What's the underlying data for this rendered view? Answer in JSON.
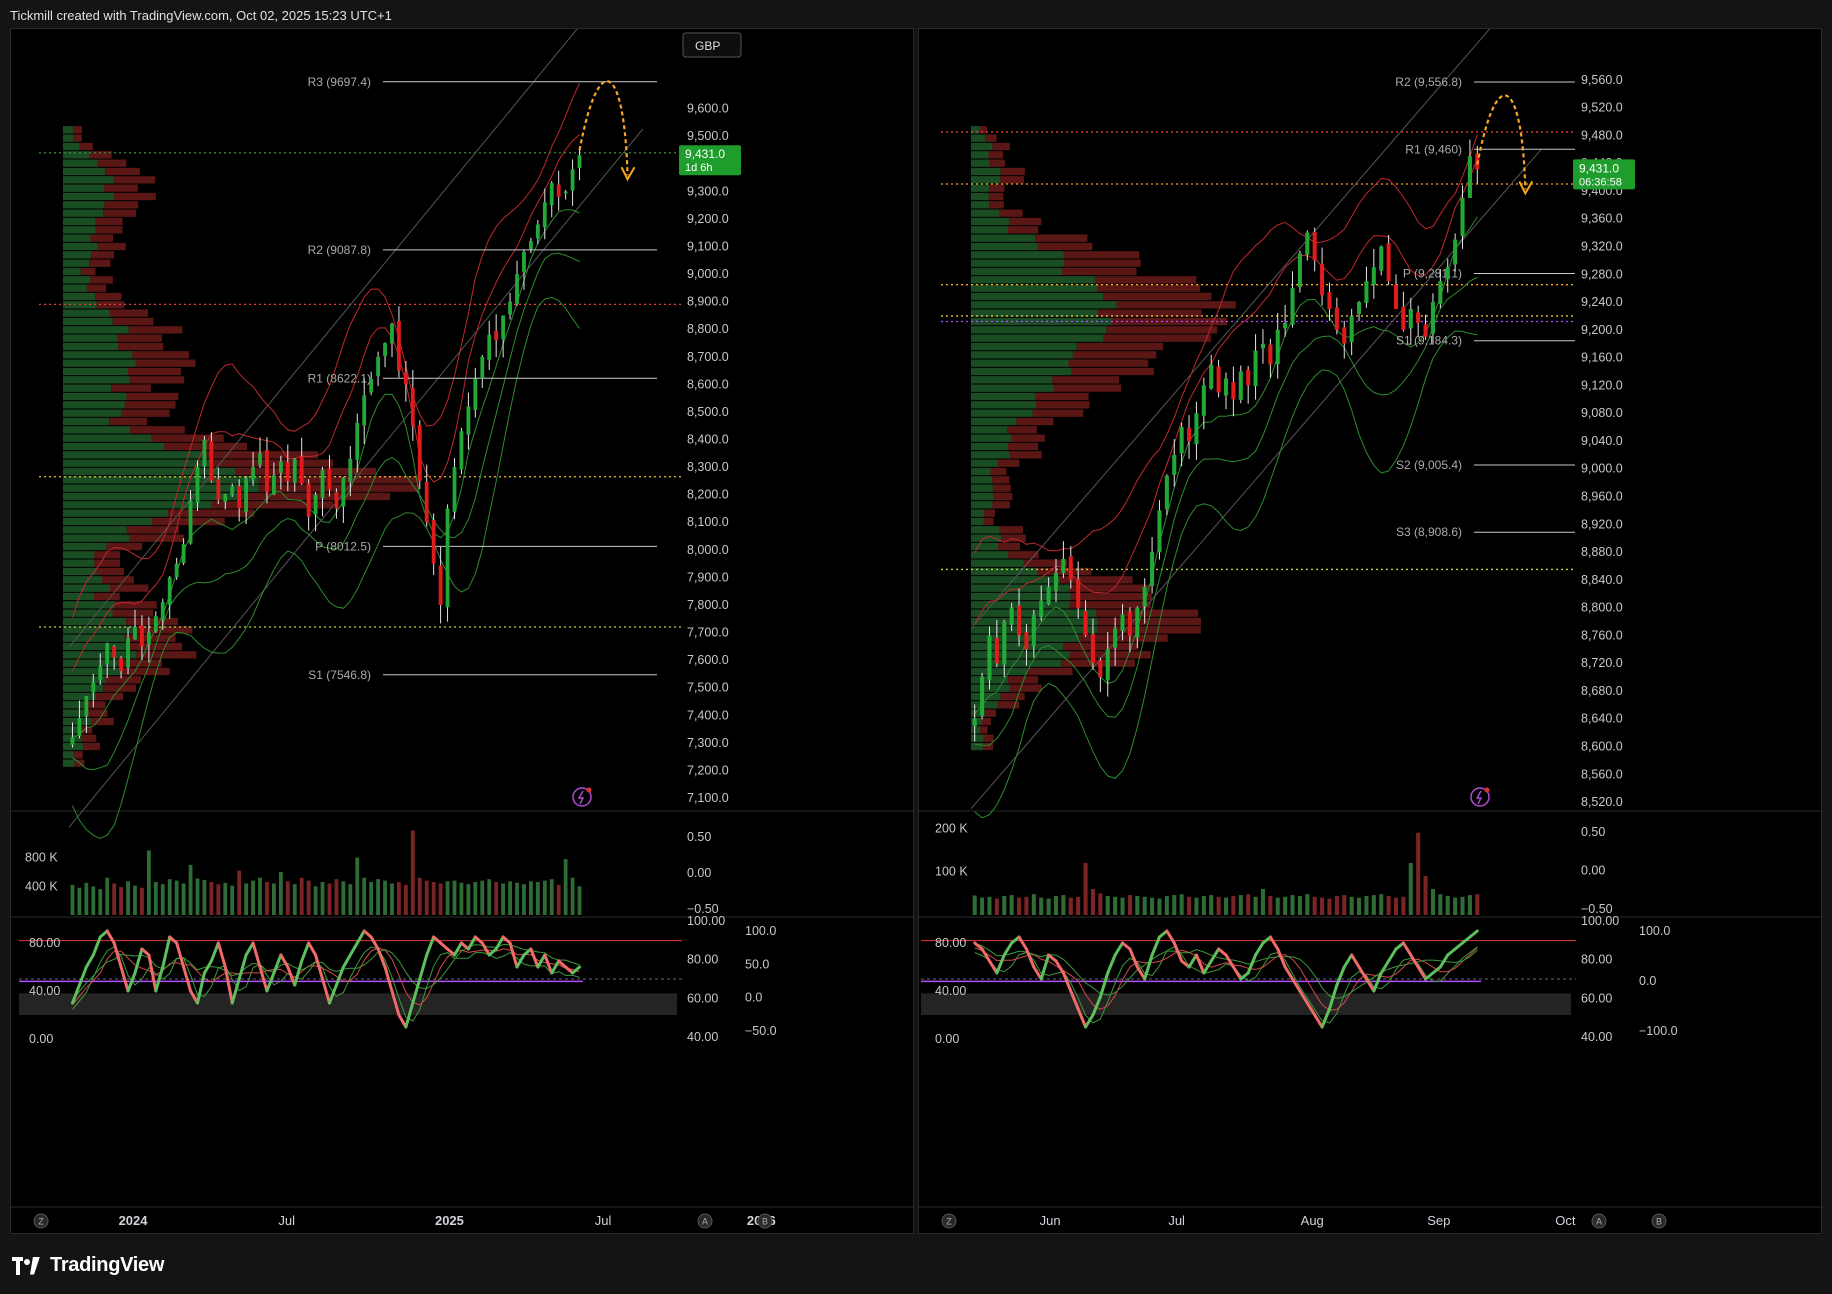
{
  "header": {
    "title": "Tickmill created with TradingView.com, Oct 02, 2025 15:23 UTC+1"
  },
  "footer": {
    "brand": "TradingView"
  },
  "colors": {
    "up": "#22a836",
    "down": "#e01b1b",
    "bg": "#000000",
    "band": "#c0282b",
    "green_line": "#2e8b2e",
    "arrow": "#f5a623",
    "price_tag": "#1e9c2c"
  },
  "chart_data": [
    {
      "type": "candlestick",
      "id": "left",
      "currency": "GBP",
      "title": "",
      "ylim": [
        7060,
        9780
      ],
      "y_ticks": [
        "9,600.0",
        "9,500.0",
        "9,400.0",
        "9,300.0",
        "9,200.0",
        "9,100.0",
        "9,000.0",
        "8,900.0",
        "8,800.0",
        "8,700.0",
        "8,600.0",
        "8,500.0",
        "8,400.0",
        "8,300.0",
        "8,200.0",
        "8,100.0",
        "8,000.0",
        "7,900.0",
        "7,800.0",
        "7,700.0",
        "7,600.0",
        "7,500.0",
        "7,400.0",
        "7,300.0",
        "7,200.0",
        "7,100.0"
      ],
      "y_tick_values": [
        9600,
        9500,
        9400,
        9300,
        9200,
        9100,
        9000,
        8900,
        8800,
        8700,
        8600,
        8500,
        8400,
        8300,
        8200,
        8100,
        8000,
        7900,
        7800,
        7700,
        7600,
        7500,
        7400,
        7300,
        7200,
        7100
      ],
      "x_ticks": [
        "2024",
        "Jul",
        "2025",
        "Jul",
        "2026"
      ],
      "x_tick_positions": [
        0.135,
        0.305,
        0.485,
        0.655,
        0.83
      ],
      "last_price": {
        "label": "9,431.0",
        "sub": "1d 6h",
        "value": 9431
      },
      "pivots": [
        {
          "label": "R3 (9697.4)",
          "value": 9697.4
        },
        {
          "label": "R2 (9087.8)",
          "value": 9087.8
        },
        {
          "label": "R1 (8622.1)",
          "value": 8622.1
        },
        {
          "label": "P (8012.5)",
          "value": 8012.5
        },
        {
          "label": "S1 (7546.8)",
          "value": 7546.8
        }
      ],
      "hlines": [
        {
          "value": 8890,
          "color": "#e8413b"
        },
        {
          "value": 8265,
          "color": "#e8c23b"
        },
        {
          "value": 7720,
          "color": "#b7d64a"
        },
        {
          "value": 9440,
          "color": "#3d8a3d"
        }
      ],
      "closes": [
        7320,
        7390,
        7470,
        7520,
        7580,
        7660,
        7610,
        7560,
        7680,
        7720,
        7650,
        7700,
        7760,
        7810,
        7900,
        7950,
        8020,
        8180,
        8300,
        8400,
        8250,
        8180,
        8200,
        8230,
        8150,
        8260,
        8300,
        8350,
        8210,
        8270,
        8320,
        8250,
        8330,
        8240,
        8120,
        8200,
        8290,
        8220,
        8150,
        8260,
        8330,
        8460,
        8560,
        8620,
        8700,
        8750,
        8820,
        8650,
        8600,
        8450,
        8250,
        8100,
        7950,
        7800,
        8150,
        8300,
        8430,
        8520,
        8620,
        8700,
        8780,
        8760,
        8850,
        8900,
        9000,
        9080,
        9120,
        9180,
        9260,
        9330,
        9280,
        9300,
        9380,
        9431
      ],
      "volume": {
        "ticks": [
          "800 K",
          "400 K"
        ],
        "tick_values": [
          800,
          400
        ],
        "max": 1200,
        "values": [
          420,
          380,
          450,
          400,
          360,
          520,
          440,
          390,
          470,
          410,
          380,
          900,
          460,
          430,
          500,
          480,
          440,
          700,
          510,
          490,
          460,
          430,
          450,
          410,
          620,
          440,
          480,
          520,
          460,
          440,
          600,
          470,
          430,
          520,
          480,
          400,
          460,
          440,
          500,
          470,
          430,
          800,
          520,
          460,
          500,
          480,
          440,
          460,
          420,
          1180,
          520,
          480,
          460,
          440,
          470,
          480,
          450,
          430,
          460,
          480,
          500,
          460,
          440,
          470,
          450,
          430,
          470,
          460,
          480,
          500,
          420,
          780,
          520,
          400
        ],
        "osc_ticks": [
          "0.50",
          "0.00",
          "−0.50"
        ]
      },
      "stoch": {
        "ticks": [
          "80.00",
          "40.00",
          "0.00"
        ],
        "right_ticks": [
          "100.00",
          "80.00",
          "60.00",
          "40.00"
        ],
        "right2_ticks": [
          "100.0",
          "50.0",
          "0.0",
          "−50.0"
        ],
        "k": [
          30,
          45,
          60,
          70,
          85,
          90,
          80,
          60,
          40,
          55,
          75,
          70,
          40,
          60,
          85,
          80,
          60,
          40,
          30,
          55,
          65,
          80,
          60,
          30,
          50,
          70,
          80,
          60,
          40,
          55,
          70,
          60,
          45,
          65,
          80,
          70,
          50,
          30,
          45,
          60,
          70,
          80,
          90,
          85,
          75,
          60,
          40,
          20,
          10,
          30,
          50,
          70,
          85,
          80,
          75,
          70,
          80,
          75,
          85,
          80,
          70,
          75,
          85,
          80,
          60,
          70,
          75,
          60,
          70,
          55,
          65,
          60,
          55,
          60
        ]
      }
    },
    {
      "type": "candlestick",
      "id": "right",
      "title": "",
      "ylim": [
        8510,
        9590
      ],
      "y_ticks": [
        "9,560.0",
        "9,520.0",
        "9,480.0",
        "9,440.0",
        "9,400.0",
        "9,360.0",
        "9,320.0",
        "9,280.0",
        "9,240.0",
        "9,200.0",
        "9,160.0",
        "9,120.0",
        "9,080.0",
        "9,040.0",
        "9,000.0",
        "8,960.0",
        "8,920.0",
        "8,880.0",
        "8,840.0",
        "8,800.0",
        "8,760.0",
        "8,720.0",
        "8,680.0",
        "8,640.0",
        "8,600.0",
        "8,560.0",
        "8,520.0"
      ],
      "y_tick_values": [
        9560,
        9520,
        9480,
        9440,
        9400,
        9360,
        9320,
        9280,
        9240,
        9200,
        9160,
        9120,
        9080,
        9040,
        9000,
        8960,
        8920,
        8880,
        8840,
        8800,
        8760,
        8720,
        8680,
        8640,
        8600,
        8560,
        8520
      ],
      "x_ticks": [
        "Jun",
        "Jul",
        "Aug",
        "Sep",
        "Oct"
      ],
      "x_tick_positions": [
        0.145,
        0.285,
        0.435,
        0.575,
        0.715
      ],
      "last_price": {
        "label": "9,431.0",
        "sub": "06:36:58",
        "value": 9431
      },
      "pivots": [
        {
          "label": "R2 (9,556.8)",
          "value": 9556.8
        },
        {
          "label": "R1 (9,460)",
          "value": 9460
        },
        {
          "label": "P (9,281.1)",
          "value": 9281.1
        },
        {
          "label": "S1 (9,184.3)",
          "value": 9184.3
        },
        {
          "label": "S2 (9,005.4)",
          "value": 9005.4
        },
        {
          "label": "S3 (8,908.6)",
          "value": 8908.6
        }
      ],
      "hlines": [
        {
          "value": 9485,
          "color": "#e8413b"
        },
        {
          "value": 9220,
          "color": "#e8c23b"
        },
        {
          "value": 8855,
          "color": "#b7d64a"
        },
        {
          "value": 9410,
          "color": "#f5a623"
        },
        {
          "value": 9265,
          "color": "#f5a623"
        },
        {
          "value": 9212,
          "color": "#b44cff"
        }
      ],
      "closes": [
        8640,
        8700,
        8760,
        8720,
        8780,
        8800,
        8760,
        8740,
        8790,
        8810,
        8830,
        8850,
        8870,
        8840,
        8800,
        8760,
        8720,
        8700,
        8740,
        8770,
        8790,
        8760,
        8800,
        8830,
        8880,
        8940,
        8990,
        9020,
        9060,
        9040,
        9080,
        9120,
        9150,
        9110,
        9130,
        9100,
        9140,
        9120,
        9170,
        9180,
        9150,
        9200,
        9210,
        9260,
        9310,
        9340,
        9300,
        9250,
        9230,
        9200,
        9180,
        9220,
        9240,
        9270,
        9290,
        9320,
        9270,
        9230,
        9200,
        9230,
        9210,
        9190,
        9240,
        9270,
        9290,
        9330,
        9390,
        9450,
        9431
      ],
      "volume": {
        "ticks": [
          "200 K",
          "100 K"
        ],
        "tick_values": [
          200,
          100
        ],
        "max": 210,
        "values": [
          45,
          40,
          42,
          38,
          44,
          46,
          40,
          42,
          48,
          40,
          38,
          44,
          46,
          40,
          42,
          120,
          60,
          50,
          44,
          42,
          40,
          46,
          44,
          42,
          40,
          38,
          44,
          46,
          48,
          42,
          40,
          44,
          46,
          42,
          40,
          44,
          46,
          48,
          42,
          60,
          44,
          40,
          42,
          46,
          44,
          48,
          42,
          40,
          38,
          44,
          46,
          42,
          40,
          44,
          46,
          48,
          44,
          40,
          42,
          120,
          190,
          90,
          60,
          48,
          44,
          40,
          42,
          46,
          48
        ],
        "osc_ticks": [
          "0.50",
          "0.00",
          "−0.50"
        ]
      },
      "stoch": {
        "ticks": [
          "80.00",
          "40.00",
          "0.00"
        ],
        "right_ticks": [
          "100.00",
          "80.00",
          "60.00",
          "40.00"
        ],
        "right2_ticks": [
          "100.0",
          "0.0",
          "−100.0"
        ],
        "k": [
          80,
          75,
          65,
          55,
          70,
          80,
          85,
          75,
          60,
          50,
          70,
          65,
          55,
          40,
          25,
          10,
          20,
          35,
          55,
          70,
          80,
          75,
          60,
          50,
          70,
          85,
          90,
          80,
          65,
          60,
          70,
          55,
          65,
          75,
          70,
          60,
          50,
          55,
          70,
          80,
          85,
          75,
          60,
          50,
          40,
          30,
          20,
          10,
          25,
          45,
          60,
          70,
          60,
          50,
          40,
          55,
          65,
          75,
          80,
          70,
          60,
          50,
          55,
          60,
          70,
          75,
          80,
          85,
          90
        ]
      }
    }
  ]
}
